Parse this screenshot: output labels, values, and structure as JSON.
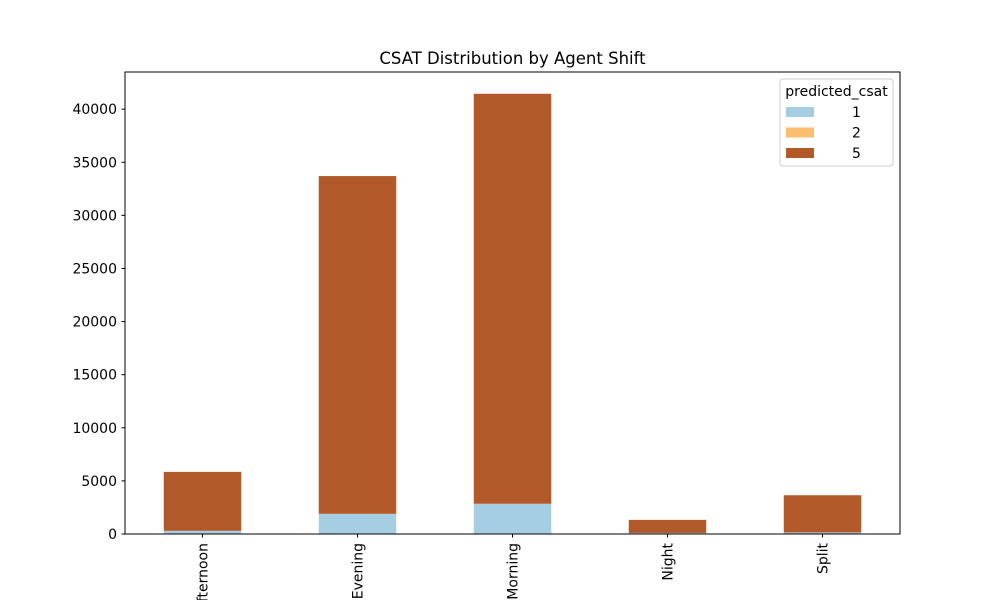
{
  "chart_data": {
    "type": "bar",
    "stacked": true,
    "title": "CSAT Distribution by Agent Shift",
    "xlabel": "",
    "ylabel": "",
    "categories": [
      "Afternoon",
      "Evening",
      "Morning",
      "Night",
      "Split"
    ],
    "series": [
      {
        "name": "1",
        "color": "#a6cee3",
        "values": [
          300,
          1900,
          2850,
          100,
          150
        ]
      },
      {
        "name": "2",
        "color": "#fdbf6f",
        "values": [
          0,
          0,
          0,
          0,
          0
        ]
      },
      {
        "name": "5",
        "color": "#b15928",
        "values": [
          5550,
          31800,
          38600,
          1230,
          3500
        ]
      }
    ],
    "ylim": [
      0,
      43500
    ],
    "yticks": [
      0,
      5000,
      10000,
      15000,
      20000,
      25000,
      30000,
      35000,
      40000
    ],
    "legend": {
      "title": "predicted_csat",
      "placement": "top-right"
    },
    "grid": false
  }
}
